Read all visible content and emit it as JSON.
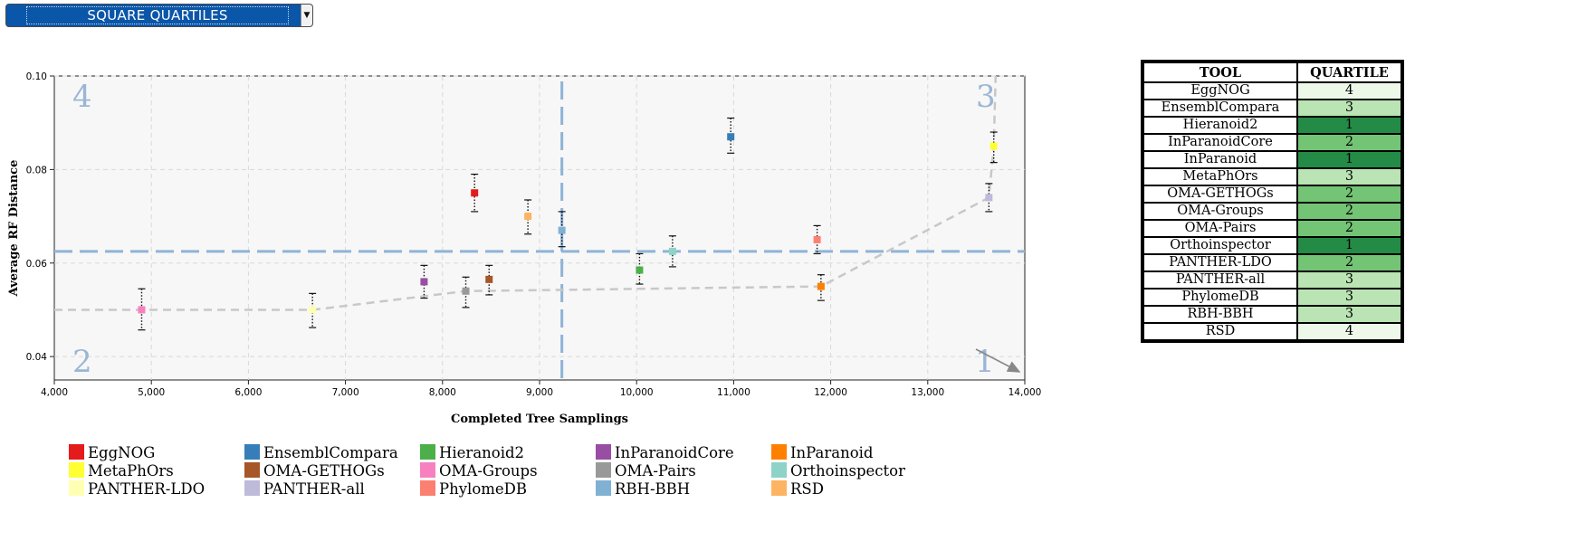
{
  "selector": {
    "value": "SQUARE QUARTILES"
  },
  "colors": {
    "quartile_1": "#238b45",
    "quartile_2": "#74c476",
    "quartile_3": "#bae4b3",
    "quartile_4": "#edf8e9",
    "quadrant_lines": "#8fb3d6",
    "frontier": "#c8c8c8"
  },
  "chart_data": {
    "type": "scatter",
    "xlabel": "Completed Tree Samplings",
    "ylabel": "Average RF Distance",
    "xlim": [
      4000,
      14000
    ],
    "ylim": [
      0.035,
      0.1
    ],
    "xticks": [
      "4,000",
      "5,000",
      "6,000",
      "7,000",
      "8,000",
      "9,000",
      "10,000",
      "11,000",
      "12,000",
      "13,000",
      "14,000"
    ],
    "yticks": [
      "0.04",
      "0.06",
      "0.08",
      "0.10"
    ],
    "grid": true,
    "legend_position": "bottom",
    "quadrant_labels": [
      "1",
      "2",
      "3",
      "4"
    ],
    "x_split": 9230,
    "y_split": 0.0625,
    "series": [
      {
        "name": "EggNOG",
        "color": "#e41a1c",
        "x": 8330,
        "y": 0.075,
        "err": [
          0.071,
          0.079
        ]
      },
      {
        "name": "EnsemblCompara",
        "color": "#377eb8",
        "x": 10970,
        "y": 0.087,
        "err": [
          0.0835,
          0.091
        ]
      },
      {
        "name": "Hieranoid2",
        "color": "#4daf4a",
        "x": 10030,
        "y": 0.0585,
        "err": [
          0.0555,
          0.062
        ]
      },
      {
        "name": "InParanoidCore",
        "color": "#984ea3",
        "x": 7810,
        "y": 0.056,
        "err": [
          0.0525,
          0.0595
        ]
      },
      {
        "name": "InParanoid",
        "color": "#ff7f00",
        "x": 11900,
        "y": 0.055,
        "err": [
          0.052,
          0.0575
        ]
      },
      {
        "name": "MetaPhOrs",
        "color": "#ffff33",
        "x": 13680,
        "y": 0.085,
        "err": [
          0.0815,
          0.088
        ]
      },
      {
        "name": "OMA-GETHOGs",
        "color": "#a65628",
        "x": 8480,
        "y": 0.0565,
        "err": [
          0.0532,
          0.0595
        ]
      },
      {
        "name": "OMA-Groups",
        "color": "#f781bf",
        "x": 4900,
        "y": 0.05,
        "err": [
          0.0457,
          0.0545
        ]
      },
      {
        "name": "OMA-Pairs",
        "color": "#999999",
        "x": 8240,
        "y": 0.054,
        "err": [
          0.0505,
          0.057
        ]
      },
      {
        "name": "Orthoinspector",
        "color": "#8dd3c7",
        "x": 10370,
        "y": 0.0625,
        "err": [
          0.0592,
          0.0658
        ]
      },
      {
        "name": "PANTHER-LDO",
        "color": "#ffffb3",
        "x": 6660,
        "y": 0.05,
        "err": [
          0.0462,
          0.0535
        ]
      },
      {
        "name": "PANTHER-all",
        "color": "#bebada",
        "x": 13630,
        "y": 0.074,
        "err": [
          0.071,
          0.077
        ]
      },
      {
        "name": "PhylomeDB",
        "color": "#fb8072",
        "x": 11860,
        "y": 0.065,
        "err": [
          0.062,
          0.068
        ]
      },
      {
        "name": "RBH-BBH",
        "color": "#80b1d3",
        "x": 9230,
        "y": 0.067,
        "err": [
          0.0635,
          0.071
        ]
      },
      {
        "name": "RSD",
        "color": "#fdb462",
        "x": 8880,
        "y": 0.07,
        "err": [
          0.0662,
          0.0735
        ]
      }
    ],
    "pareto_frontier": [
      {
        "x": 4000,
        "y": 0.05
      },
      {
        "x": 6660,
        "y": 0.05
      },
      {
        "x": 8240,
        "y": 0.054
      },
      {
        "x": 11900,
        "y": 0.055
      },
      {
        "x": 13630,
        "y": 0.074
      },
      {
        "x": 13680,
        "y": 0.085
      },
      {
        "x": 13700,
        "y": 0.1
      }
    ]
  },
  "table": {
    "headers": [
      "TOOL",
      "QUARTILE"
    ],
    "rows": [
      {
        "tool": "EggNOG",
        "quartile": "4"
      },
      {
        "tool": "EnsemblCompara",
        "quartile": "3"
      },
      {
        "tool": "Hieranoid2",
        "quartile": "1"
      },
      {
        "tool": "InParanoidCore",
        "quartile": "2"
      },
      {
        "tool": "InParanoid",
        "quartile": "1"
      },
      {
        "tool": "MetaPhOrs",
        "quartile": "3"
      },
      {
        "tool": "OMA-GETHOGs",
        "quartile": "2"
      },
      {
        "tool": "OMA-Groups",
        "quartile": "2"
      },
      {
        "tool": "OMA-Pairs",
        "quartile": "2"
      },
      {
        "tool": "Orthoinspector",
        "quartile": "1"
      },
      {
        "tool": "PANTHER-LDO",
        "quartile": "2"
      },
      {
        "tool": "PANTHER-all",
        "quartile": "3"
      },
      {
        "tool": "PhylomeDB",
        "quartile": "3"
      },
      {
        "tool": "RBH-BBH",
        "quartile": "3"
      },
      {
        "tool": "RSD",
        "quartile": "4"
      }
    ]
  }
}
